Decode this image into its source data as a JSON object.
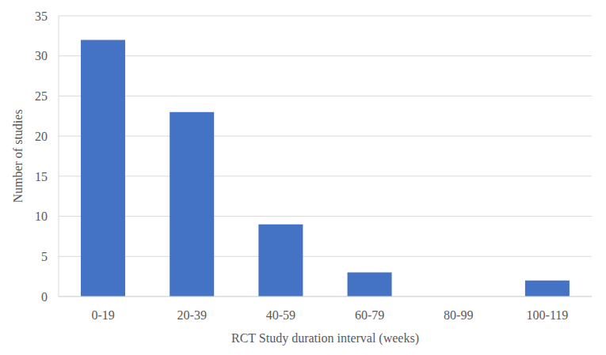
{
  "chart_data": {
    "type": "bar",
    "categories": [
      "0-19",
      "20-39",
      "40-59",
      "60-79",
      "80-99",
      "100-119"
    ],
    "values": [
      32,
      23,
      9,
      3,
      0,
      2
    ],
    "color": "#4472c4",
    "xlabel": "RCT Study duration interval (weeks)",
    "ylabel": "Number of studies",
    "ylim": [
      0,
      35
    ],
    "yticks": [
      0,
      5,
      10,
      15,
      20,
      25,
      30,
      35
    ],
    "grid": true
  }
}
